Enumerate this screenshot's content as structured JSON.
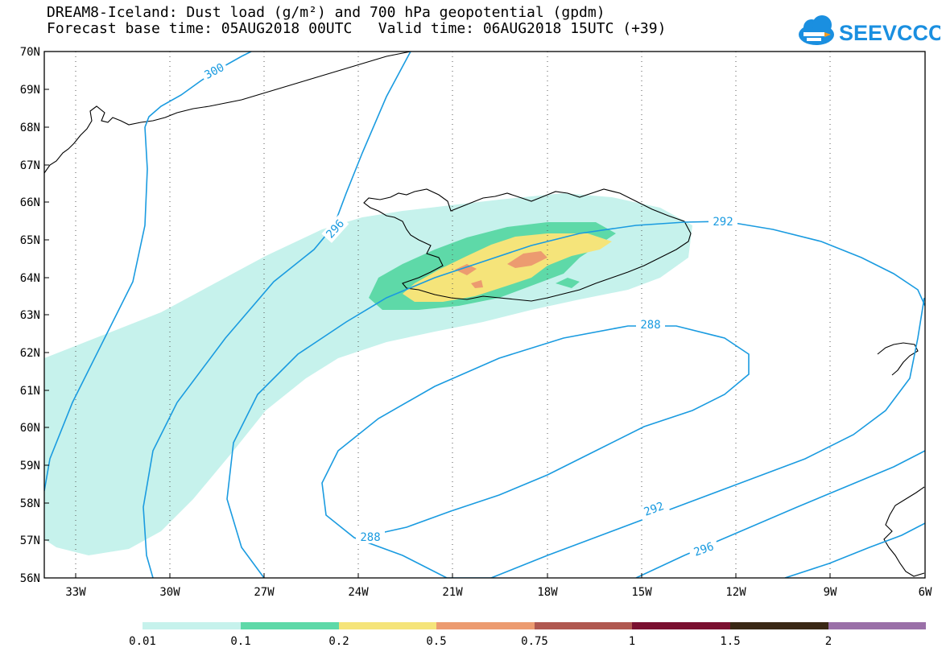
{
  "header": {
    "title_line1": "DREAM8-Iceland: Dust load (g/m²) and 700 hPa geopotential (gpdm)",
    "title_line2": "Forecast base time: 05AUG2018 00UTC   Valid time: 06AUG2018 15UTC (+39)"
  },
  "logo": {
    "text": "SEEVCCC",
    "icon": "cloud-icon",
    "color": "#1a8fe0",
    "accent": "#f29a1f"
  },
  "map": {
    "lon_range": [
      -34.5,
      -6
    ],
    "lat_range": [
      56,
      70
    ],
    "lat_labels": [
      "70N",
      "69N",
      "68N",
      "67N",
      "66N",
      "65N",
      "64N",
      "63N",
      "62N",
      "61N",
      "60N",
      "59N",
      "58N",
      "57N",
      "56N"
    ],
    "lon_labels": [
      "33W",
      "30W",
      "27W",
      "24W",
      "21W",
      "18W",
      "15W",
      "12W",
      "9W",
      "6W"
    ],
    "contour_color": "#1a9be0",
    "contour_labels": [
      "300",
      "296",
      "292",
      "288",
      "288",
      "292",
      "296",
      "292"
    ]
  },
  "colorbar": {
    "labels": [
      "0.01",
      "0.1",
      "0.2",
      "0.5",
      "0.75",
      "1",
      "1.5",
      "2"
    ],
    "colors": [
      "#c6f2ec",
      "#5ed9a8",
      "#f5e47a",
      "#ec9b70",
      "#b05850",
      "#7a1030",
      "#3a2815",
      "#9a70a8"
    ]
  }
}
